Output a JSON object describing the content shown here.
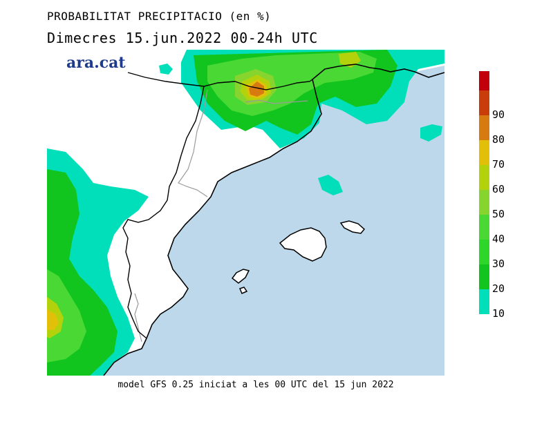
{
  "header": {
    "title": "PROBABILITAT PRECIPITACIO (en %)",
    "subtitle": "Dimecres  15.jun.2022 00-24h UTC"
  },
  "brand": {
    "logo_text": "ara.cat",
    "logo_color": "#1e3a8a"
  },
  "footer": {
    "text": "model GFS 0.25 iniciat a les 00 UTC del 15 jun 2022"
  },
  "colors": {
    "sea": "#bcd8ea",
    "land": "#ffffff",
    "coast": "#000000",
    "border": "#9a9a9a"
  },
  "legend": {
    "levels": [
      {
        "label": "10",
        "color": "#00dfba"
      },
      {
        "label": "20",
        "color": "#12c51e"
      },
      {
        "label": "30",
        "color": "#2fd62a"
      },
      {
        "label": "40",
        "color": "#49d834"
      },
      {
        "label": "50",
        "color": "#87d42f"
      },
      {
        "label": "60",
        "color": "#b4d20c"
      },
      {
        "label": "70",
        "color": "#e2bf08"
      },
      {
        "label": "80",
        "color": "#d77a10"
      },
      {
        "label": "90",
        "color": "#c93d0a"
      },
      {
        "label": "",
        "color": "#c1000c"
      }
    ]
  }
}
